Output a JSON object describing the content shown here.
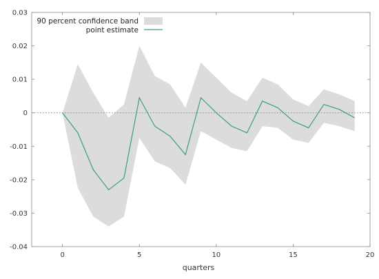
{
  "chart_data": {
    "type": "line",
    "xlabel": "quarters",
    "ylabel": "",
    "xlim": [
      -2,
      20
    ],
    "ylim": [
      -0.04,
      0.03
    ],
    "x_ticks": [
      0,
      5,
      10,
      15,
      20
    ],
    "x_tick_labels": [
      "0",
      "5",
      "10",
      "15",
      "20"
    ],
    "y_ticks": [
      -0.04,
      -0.03,
      -0.02,
      -0.01,
      0,
      0.01,
      0.02,
      0.03
    ],
    "y_tick_labels": [
      "-0.04",
      "-0.03",
      "-0.02",
      "-0.01",
      "0",
      "0.01",
      "0.02",
      "0.03"
    ],
    "grid": false,
    "zero_line": true,
    "legend_position": "top-left",
    "x": [
      0,
      1,
      2,
      3,
      4,
      5,
      6,
      7,
      8,
      9,
      10,
      11,
      12,
      13,
      14,
      15,
      16,
      17,
      18,
      19
    ],
    "series": [
      {
        "name": "90 percent confidence band",
        "type": "band",
        "color": "#dcdcdc",
        "upper": [
          0.0,
          0.0145,
          0.006,
          -0.0015,
          0.0025,
          0.02,
          0.011,
          0.0085,
          0.0015,
          0.015,
          0.0105,
          0.006,
          0.0035,
          0.0105,
          0.0085,
          0.004,
          0.002,
          0.007,
          0.0055,
          0.0035
        ],
        "lower": [
          0.0,
          -0.0225,
          -0.031,
          -0.034,
          -0.031,
          -0.0075,
          -0.0145,
          -0.0165,
          -0.0215,
          -0.0055,
          -0.008,
          -0.0105,
          -0.0115,
          -0.004,
          -0.0045,
          -0.008,
          -0.009,
          -0.003,
          -0.004,
          -0.0055
        ]
      },
      {
        "name": "point estimate",
        "type": "line",
        "color": "#3a9e7c",
        "values": [
          0.0,
          -0.006,
          -0.017,
          -0.023,
          -0.0195,
          0.0045,
          -0.004,
          -0.007,
          -0.0125,
          0.0045,
          0.0,
          -0.004,
          -0.006,
          0.0035,
          0.0015,
          -0.0025,
          -0.0045,
          0.0025,
          0.001,
          -0.0015
        ]
      }
    ]
  }
}
